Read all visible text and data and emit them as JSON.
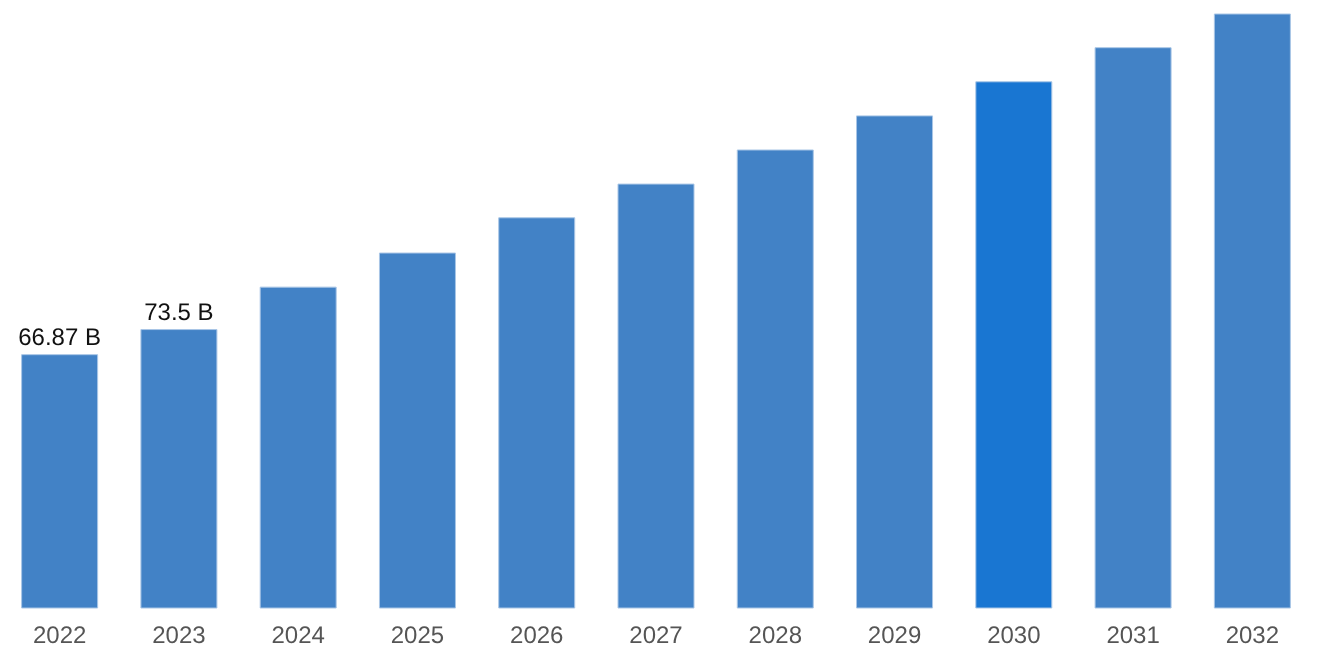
{
  "chart_data": {
    "type": "bar",
    "categories": [
      "2022",
      "2023",
      "2024",
      "2025",
      "2026",
      "2027",
      "2028",
      "2029",
      "2030",
      "2031",
      "2032"
    ],
    "values": [
      66.87,
      73.5,
      84.7,
      93.7,
      103.0,
      111.9,
      120.9,
      129.9,
      138.9,
      147.9,
      156.8
    ],
    "colors": [
      "#4282c6",
      "#4282c6",
      "#4282c6",
      "#4282c6",
      "#4282c6",
      "#4282c6",
      "#4282c6",
      "#4282c6",
      "#1976d2",
      "#4282c6",
      "#4282c6"
    ],
    "value_labels": [
      "66.87 B",
      "73.5 B",
      null,
      null,
      null,
      null,
      null,
      null,
      null,
      null,
      null
    ],
    "grid": false
  }
}
